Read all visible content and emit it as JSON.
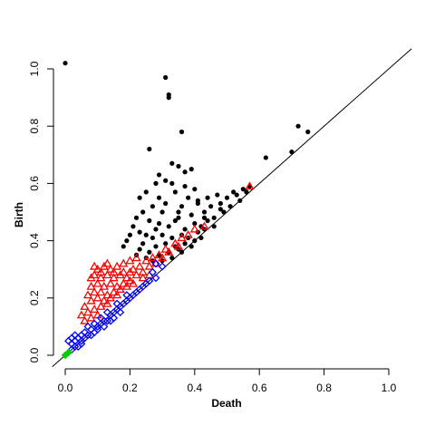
{
  "chart_data": {
    "type": "scatter",
    "title": "",
    "xlabel": "Death",
    "ylabel": "Birth",
    "xlim": [
      0,
      1.0
    ],
    "ylim": [
      0,
      1.0
    ],
    "x_ticks": [
      {
        "value": 0.0,
        "label": "0.0"
      },
      {
        "value": 0.2,
        "label": "0.2"
      },
      {
        "value": 0.4,
        "label": "0.4"
      },
      {
        "value": 0.6,
        "label": "0.6"
      },
      {
        "value": 0.8,
        "label": "0.8"
      },
      {
        "value": 1.0,
        "label": "1.0"
      }
    ],
    "y_ticks": [
      {
        "value": 0.0,
        "label": "0.0"
      },
      {
        "value": 0.2,
        "label": "0.2"
      },
      {
        "value": 0.4,
        "label": "0.4"
      },
      {
        "value": 0.6,
        "label": "0.6"
      },
      {
        "value": 0.8,
        "label": "0.8"
      },
      {
        "value": 1.0,
        "label": "1.0"
      }
    ],
    "grid": false,
    "legend": "none",
    "diagonal_line": true,
    "series": [
      {
        "marker": "filled-circle",
        "color": "#000000",
        "points": [
          [
            0.0,
            1.02
          ],
          [
            0.31,
            0.97
          ],
          [
            0.32,
            0.91
          ],
          [
            0.32,
            0.9
          ],
          [
            0.36,
            0.78
          ],
          [
            0.72,
            0.8
          ],
          [
            0.75,
            0.78
          ],
          [
            0.7,
            0.71
          ],
          [
            0.62,
            0.69
          ],
          [
            0.26,
            0.72
          ],
          [
            0.33,
            0.67
          ],
          [
            0.35,
            0.66
          ],
          [
            0.37,
            0.64
          ],
          [
            0.39,
            0.65
          ],
          [
            0.31,
            0.61
          ],
          [
            0.33,
            0.6
          ],
          [
            0.28,
            0.6
          ],
          [
            0.34,
            0.57
          ],
          [
            0.38,
            0.55
          ],
          [
            0.4,
            0.58
          ],
          [
            0.25,
            0.57
          ],
          [
            0.29,
            0.55
          ],
          [
            0.31,
            0.53
          ],
          [
            0.36,
            0.52
          ],
          [
            0.41,
            0.54
          ],
          [
            0.44,
            0.55
          ],
          [
            0.47,
            0.56
          ],
          [
            0.52,
            0.57
          ],
          [
            0.55,
            0.58
          ],
          [
            0.57,
            0.59
          ],
          [
            0.53,
            0.56
          ],
          [
            0.5,
            0.55
          ],
          [
            0.45,
            0.52
          ],
          [
            0.43,
            0.5
          ],
          [
            0.48,
            0.51
          ],
          [
            0.39,
            0.49
          ],
          [
            0.35,
            0.48
          ],
          [
            0.3,
            0.5
          ],
          [
            0.27,
            0.52
          ],
          [
            0.23,
            0.55
          ],
          [
            0.24,
            0.5
          ],
          [
            0.26,
            0.47
          ],
          [
            0.29,
            0.46
          ],
          [
            0.32,
            0.45
          ],
          [
            0.34,
            0.47
          ],
          [
            0.37,
            0.44
          ],
          [
            0.4,
            0.46
          ],
          [
            0.42,
            0.45
          ],
          [
            0.44,
            0.47
          ],
          [
            0.46,
            0.48
          ],
          [
            0.22,
            0.48
          ],
          [
            0.21,
            0.45
          ],
          [
            0.23,
            0.43
          ],
          [
            0.25,
            0.42
          ],
          [
            0.27,
            0.41
          ],
          [
            0.3,
            0.42
          ],
          [
            0.33,
            0.41
          ],
          [
            0.36,
            0.42
          ],
          [
            0.38,
            0.41
          ],
          [
            0.41,
            0.43
          ],
          [
            0.43,
            0.44
          ],
          [
            0.2,
            0.42
          ],
          [
            0.24,
            0.39
          ],
          [
            0.28,
            0.38
          ],
          [
            0.31,
            0.39
          ],
          [
            0.34,
            0.38
          ],
          [
            0.37,
            0.39
          ],
          [
            0.4,
            0.4
          ],
          [
            0.26,
            0.36
          ],
          [
            0.29,
            0.35
          ],
          [
            0.32,
            0.36
          ],
          [
            0.35,
            0.37
          ],
          [
            0.23,
            0.37
          ],
          [
            0.19,
            0.4
          ],
          [
            0.3,
            0.33
          ],
          [
            0.27,
            0.33
          ],
          [
            0.25,
            0.34
          ],
          [
            0.22,
            0.35
          ],
          [
            0.33,
            0.34
          ],
          [
            0.36,
            0.36
          ],
          [
            0.39,
            0.38
          ],
          [
            0.42,
            0.41
          ],
          [
            0.46,
            0.45
          ],
          [
            0.49,
            0.5
          ],
          [
            0.51,
            0.52
          ],
          [
            0.54,
            0.54
          ],
          [
            0.56,
            0.57
          ],
          [
            0.48,
            0.53
          ],
          [
            0.28,
            0.44
          ],
          [
            0.35,
            0.5
          ],
          [
            0.37,
            0.59
          ],
          [
            0.29,
            0.63
          ],
          [
            0.41,
            0.53
          ],
          [
            0.43,
            0.48
          ],
          [
            0.18,
            0.38
          ]
        ]
      },
      {
        "marker": "open-triangle",
        "color": "#ff0000",
        "points": [
          [
            0.57,
            0.59
          ],
          [
            0.36,
            0.41
          ],
          [
            0.34,
            0.39
          ],
          [
            0.31,
            0.37
          ],
          [
            0.29,
            0.35
          ],
          [
            0.27,
            0.34
          ],
          [
            0.25,
            0.33
          ],
          [
            0.22,
            0.34
          ],
          [
            0.2,
            0.33
          ],
          [
            0.18,
            0.32
          ],
          [
            0.16,
            0.31
          ],
          [
            0.14,
            0.3
          ],
          [
            0.12,
            0.31
          ],
          [
            0.1,
            0.3
          ],
          [
            0.09,
            0.28
          ],
          [
            0.11,
            0.27
          ],
          [
            0.13,
            0.28
          ],
          [
            0.15,
            0.27
          ],
          [
            0.17,
            0.28
          ],
          [
            0.19,
            0.27
          ],
          [
            0.21,
            0.3
          ],
          [
            0.23,
            0.31
          ],
          [
            0.08,
            0.27
          ],
          [
            0.08,
            0.24
          ],
          [
            0.1,
            0.25
          ],
          [
            0.12,
            0.24
          ],
          [
            0.14,
            0.25
          ],
          [
            0.16,
            0.24
          ],
          [
            0.18,
            0.25
          ],
          [
            0.2,
            0.26
          ],
          [
            0.22,
            0.28
          ],
          [
            0.24,
            0.29
          ],
          [
            0.26,
            0.31
          ],
          [
            0.28,
            0.32
          ],
          [
            0.07,
            0.21
          ],
          [
            0.09,
            0.22
          ],
          [
            0.11,
            0.22
          ],
          [
            0.13,
            0.21
          ],
          [
            0.15,
            0.22
          ],
          [
            0.17,
            0.23
          ],
          [
            0.19,
            0.24
          ],
          [
            0.21,
            0.25
          ],
          [
            0.06,
            0.17
          ],
          [
            0.08,
            0.19
          ],
          [
            0.1,
            0.2
          ],
          [
            0.12,
            0.19
          ],
          [
            0.14,
            0.2
          ],
          [
            0.16,
            0.21
          ],
          [
            0.05,
            0.14
          ],
          [
            0.07,
            0.15
          ],
          [
            0.09,
            0.16
          ],
          [
            0.11,
            0.17
          ],
          [
            0.13,
            0.18
          ],
          [
            0.06,
            0.12
          ],
          [
            0.08,
            0.13
          ],
          [
            0.1,
            0.14
          ],
          [
            0.3,
            0.34
          ],
          [
            0.32,
            0.36
          ],
          [
            0.35,
            0.38
          ],
          [
            0.38,
            0.42
          ],
          [
            0.4,
            0.44
          ],
          [
            0.43,
            0.45
          ],
          [
            0.18,
            0.29
          ],
          [
            0.24,
            0.27
          ],
          [
            0.26,
            0.28
          ],
          [
            0.13,
            0.32
          ],
          [
            0.09,
            0.31
          ],
          [
            0.11,
            0.29
          ],
          [
            0.15,
            0.29
          ],
          [
            0.2,
            0.29
          ]
        ]
      },
      {
        "marker": "open-diamond",
        "color": "#0000ff",
        "points": [
          [
            0.01,
            0.05
          ],
          [
            0.02,
            0.06
          ],
          [
            0.03,
            0.05
          ],
          [
            0.03,
            0.07
          ],
          [
            0.04,
            0.06
          ],
          [
            0.05,
            0.07
          ],
          [
            0.05,
            0.05
          ],
          [
            0.06,
            0.08
          ],
          [
            0.07,
            0.07
          ],
          [
            0.08,
            0.09
          ],
          [
            0.09,
            0.08
          ],
          [
            0.1,
            0.1
          ],
          [
            0.11,
            0.11
          ],
          [
            0.12,
            0.12
          ],
          [
            0.13,
            0.12
          ],
          [
            0.14,
            0.14
          ],
          [
            0.15,
            0.15
          ],
          [
            0.16,
            0.16
          ],
          [
            0.17,
            0.17
          ],
          [
            0.18,
            0.18
          ],
          [
            0.19,
            0.19
          ],
          [
            0.2,
            0.2
          ],
          [
            0.21,
            0.21
          ],
          [
            0.22,
            0.22
          ],
          [
            0.24,
            0.24
          ],
          [
            0.26,
            0.26
          ],
          [
            0.28,
            0.27
          ],
          [
            0.28,
            0.32
          ],
          [
            0.3,
            0.31
          ],
          [
            0.02,
            0.04
          ],
          [
            0.04,
            0.03
          ],
          [
            0.06,
            0.06
          ],
          [
            0.08,
            0.07
          ],
          [
            0.1,
            0.09
          ],
          [
            0.12,
            0.1
          ],
          [
            0.14,
            0.12
          ],
          [
            0.07,
            0.1
          ],
          [
            0.09,
            0.11
          ],
          [
            0.11,
            0.13
          ],
          [
            0.13,
            0.15
          ],
          [
            0.16,
            0.18
          ],
          [
            0.19,
            0.21
          ],
          [
            0.02,
            0.02
          ],
          [
            0.03,
            0.03
          ],
          [
            0.05,
            0.04
          ],
          [
            0.15,
            0.13
          ],
          [
            0.17,
            0.15
          ],
          [
            0.23,
            0.23
          ],
          [
            0.25,
            0.25
          ],
          [
            0.27,
            0.29
          ]
        ]
      },
      {
        "marker": "filled-diamond",
        "color": "#00cc00",
        "points": [
          [
            0.0,
            0.0
          ],
          [
            0.01,
            0.01
          ]
        ]
      }
    ]
  }
}
